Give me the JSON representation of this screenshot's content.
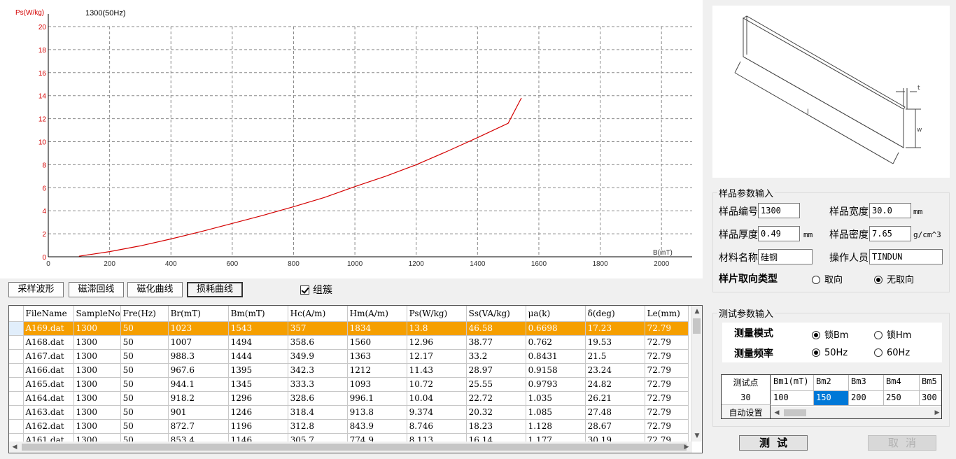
{
  "chart_data": {
    "type": "line",
    "ylabel": "Ps(W/kg)",
    "xlabel": "B(mT)",
    "series_title": "1300(50Hz)",
    "xlim": [
      0,
      2100
    ],
    "ylim": [
      0,
      20
    ],
    "xticks": [
      0,
      200,
      400,
      600,
      800,
      1000,
      1200,
      1400,
      1600,
      1800,
      2000
    ],
    "yticks": [
      0,
      2,
      4,
      6,
      8,
      10,
      12,
      14,
      16,
      18,
      20
    ],
    "grid": true,
    "line_color": "#d40000",
    "series": [
      {
        "x": [
          100,
          200,
          300,
          400,
          500,
          600,
          700,
          800,
          900,
          1000,
          1100,
          1200,
          1300,
          1400,
          1500,
          1543
        ],
        "y": [
          0.05,
          0.45,
          0.95,
          1.55,
          2.2,
          2.9,
          3.6,
          4.35,
          5.15,
          6.1,
          7.0,
          8.0,
          9.15,
          10.35,
          11.6,
          13.8
        ]
      }
    ]
  },
  "tabs": [
    "采样波形",
    "磁滞回线",
    "磁化曲线",
    "损耗曲线"
  ],
  "active_tab": 3,
  "group_label": "组簇",
  "table": {
    "columns": [
      "FileName",
      "SampleNo",
      "Fre(Hz)",
      "Br(mT)",
      "Bm(mT)",
      "Hc(A/m)",
      "Hm(A/m)",
      "Ps(W/kg)",
      "Ss(VA/kg)",
      "μa(k)",
      "δ(deg)",
      "Le(mm)"
    ],
    "rows": [
      [
        "A169.dat",
        "1300",
        "50",
        "1023",
        "1543",
        "357",
        "1834",
        "13.8",
        "46.58",
        "0.6698",
        "17.23",
        "72.79"
      ],
      [
        "A168.dat",
        "1300",
        "50",
        "1007",
        "1494",
        "358.6",
        "1560",
        "12.96",
        "38.77",
        "0.762",
        "19.53",
        "72.79"
      ],
      [
        "A167.dat",
        "1300",
        "50",
        "988.3",
        "1444",
        "349.9",
        "1363",
        "12.17",
        "33.2",
        "0.8431",
        "21.5",
        "72.79"
      ],
      [
        "A166.dat",
        "1300",
        "50",
        "967.6",
        "1395",
        "342.3",
        "1212",
        "11.43",
        "28.97",
        "0.9158",
        "23.24",
        "72.79"
      ],
      [
        "A165.dat",
        "1300",
        "50",
        "944.1",
        "1345",
        "333.3",
        "1093",
        "10.72",
        "25.55",
        "0.9793",
        "24.82",
        "72.79"
      ],
      [
        "A164.dat",
        "1300",
        "50",
        "918.2",
        "1296",
        "328.6",
        "996.1",
        "10.04",
        "22.72",
        "1.035",
        "26.21",
        "72.79"
      ],
      [
        "A163.dat",
        "1300",
        "50",
        "901",
        "1246",
        "318.4",
        "913.8",
        "9.374",
        "20.32",
        "1.085",
        "27.48",
        "72.79"
      ],
      [
        "A162.dat",
        "1300",
        "50",
        "872.7",
        "1196",
        "312.8",
        "843.9",
        "8.746",
        "18.23",
        "1.128",
        "28.67",
        "72.79"
      ],
      [
        "A161.dat",
        "1300",
        "50",
        "853.4",
        "1146",
        "305.7",
        "774.9",
        "8.113",
        "16.14",
        "1.177",
        "30.19",
        "72.79"
      ]
    ]
  },
  "diagram": {
    "label_l": "l",
    "label_t": "t",
    "label_w": "w"
  },
  "sample_params": {
    "legend": "样品参数输入",
    "sample_no_label": "样品编号",
    "sample_no": "1300",
    "width_label": "样品宽度",
    "width": "30.0",
    "width_unit": "mm",
    "thickness_label": "样品厚度",
    "thickness": "0.49",
    "thickness_unit": "mm",
    "density_label": "样品密度",
    "density": "7.65",
    "density_unit": "g/cm^3",
    "material_label": "材料名称",
    "material": "硅钢",
    "operator_label": "操作人员",
    "operator": "TINDUN",
    "orient_label": "样片取向类型",
    "orient_opt1": "取向",
    "orient_opt2": "无取向",
    "orient_selected": "无取向"
  },
  "test_params": {
    "legend": "测试参数输入",
    "mode_label": "测量模式",
    "mode_opt1": "锁Bm",
    "mode_opt2": "锁Hm",
    "mode_selected": "锁Bm",
    "freq_label": "测量频率",
    "freq_opt1": "50Hz",
    "freq_opt2": "60Hz",
    "freq_selected": "50Hz",
    "points_label": "测试点",
    "points": "30",
    "auto_label": "自动设置",
    "bm_headers": [
      "Bm1(mT)",
      "Bm2",
      "Bm3",
      "Bm4",
      "Bm5"
    ],
    "bm_values": [
      "100",
      "150",
      "200",
      "250",
      "300"
    ]
  },
  "buttons": {
    "test": "测试",
    "cancel": "取消"
  }
}
